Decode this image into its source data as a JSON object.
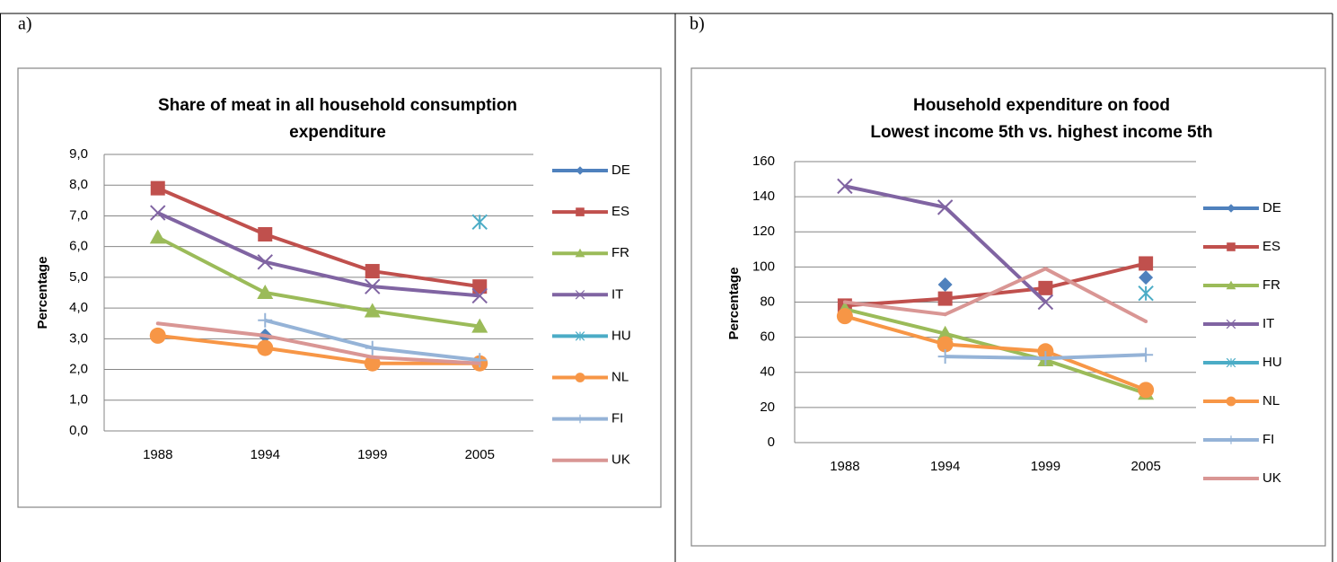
{
  "chart_data": [
    {
      "type": "line",
      "label": "a)",
      "title": [
        "Share of meat in all household consumption",
        "expenditure"
      ],
      "y_label": "Percentage",
      "categories": [
        "1988",
        "1994",
        "1999",
        "2005"
      ],
      "ylim": [
        0,
        9
      ],
      "yticks": [
        {
          "value": 0,
          "label": "0,0"
        },
        {
          "value": 1,
          "label": "1,0"
        },
        {
          "value": 2,
          "label": "2,0"
        },
        {
          "value": 3,
          "label": "3,0"
        },
        {
          "value": 4,
          "label": "4,0"
        },
        {
          "value": 5,
          "label": "5,0"
        },
        {
          "value": 6,
          "label": "6,0"
        },
        {
          "value": 7,
          "label": "7,0"
        },
        {
          "value": 8,
          "label": "8,0"
        },
        {
          "value": 9,
          "label": "9,0"
        }
      ],
      "grid": true,
      "legend": "right",
      "series": [
        {
          "name": "DE",
          "color": "#4f81bd",
          "marker": "diamond",
          "values": [
            null,
            3.1,
            null,
            null
          ]
        },
        {
          "name": "ES",
          "color": "#c0504d",
          "marker": "square",
          "values": [
            7.9,
            6.4,
            5.2,
            4.7
          ]
        },
        {
          "name": "FR",
          "color": "#9bbb59",
          "marker": "triangle",
          "values": [
            6.3,
            4.5,
            3.9,
            3.4
          ]
        },
        {
          "name": "IT",
          "color": "#8064a2",
          "marker": "x",
          "values": [
            7.1,
            5.5,
            4.7,
            4.4
          ]
        },
        {
          "name": "HU",
          "color": "#4bacc6",
          "marker": "asterisk",
          "values": [
            null,
            null,
            null,
            6.8
          ]
        },
        {
          "name": "NL",
          "color": "#f79646",
          "marker": "circle",
          "values": [
            3.1,
            2.7,
            2.2,
            2.2
          ]
        },
        {
          "name": "FI",
          "color": "#95b3d7",
          "marker": "plus",
          "values": [
            null,
            3.6,
            2.7,
            2.3
          ]
        },
        {
          "name": "UK",
          "color": "#d99694",
          "marker": "none",
          "values": [
            3.5,
            3.1,
            2.4,
            2.2
          ]
        }
      ]
    },
    {
      "type": "line",
      "label": "b)",
      "title": [
        "Household expenditure on food",
        "Lowest income 5th vs. highest income 5th"
      ],
      "y_label": "Percentage",
      "categories": [
        "1988",
        "1994",
        "1999",
        "2005"
      ],
      "ylim": [
        0,
        160
      ],
      "yticks": [
        0,
        20,
        40,
        60,
        80,
        100,
        120,
        140,
        160
      ],
      "grid": true,
      "legend": "right",
      "series": [
        {
          "name": "DE",
          "color": "#4f81bd",
          "marker": "diamond",
          "values": [
            null,
            90,
            null,
            94
          ]
        },
        {
          "name": "ES",
          "color": "#c0504d",
          "marker": "square",
          "values": [
            78,
            82,
            88,
            102
          ]
        },
        {
          "name": "FR",
          "color": "#9bbb59",
          "marker": "triangle",
          "values": [
            76,
            62,
            47,
            28
          ]
        },
        {
          "name": "IT",
          "color": "#8064a2",
          "marker": "x",
          "values": [
            146,
            134,
            80,
            null
          ]
        },
        {
          "name": "HU",
          "color": "#4bacc6",
          "marker": "asterisk",
          "values": [
            null,
            null,
            null,
            85
          ]
        },
        {
          "name": "NL",
          "color": "#f79646",
          "marker": "circle",
          "values": [
            72,
            56,
            52,
            30
          ]
        },
        {
          "name": "FI",
          "color": "#95b3d7",
          "marker": "plus",
          "values": [
            null,
            49,
            48,
            50
          ]
        },
        {
          "name": "UK",
          "color": "#d99694",
          "marker": "none",
          "values": [
            80,
            73,
            99,
            69
          ]
        }
      ]
    }
  ]
}
